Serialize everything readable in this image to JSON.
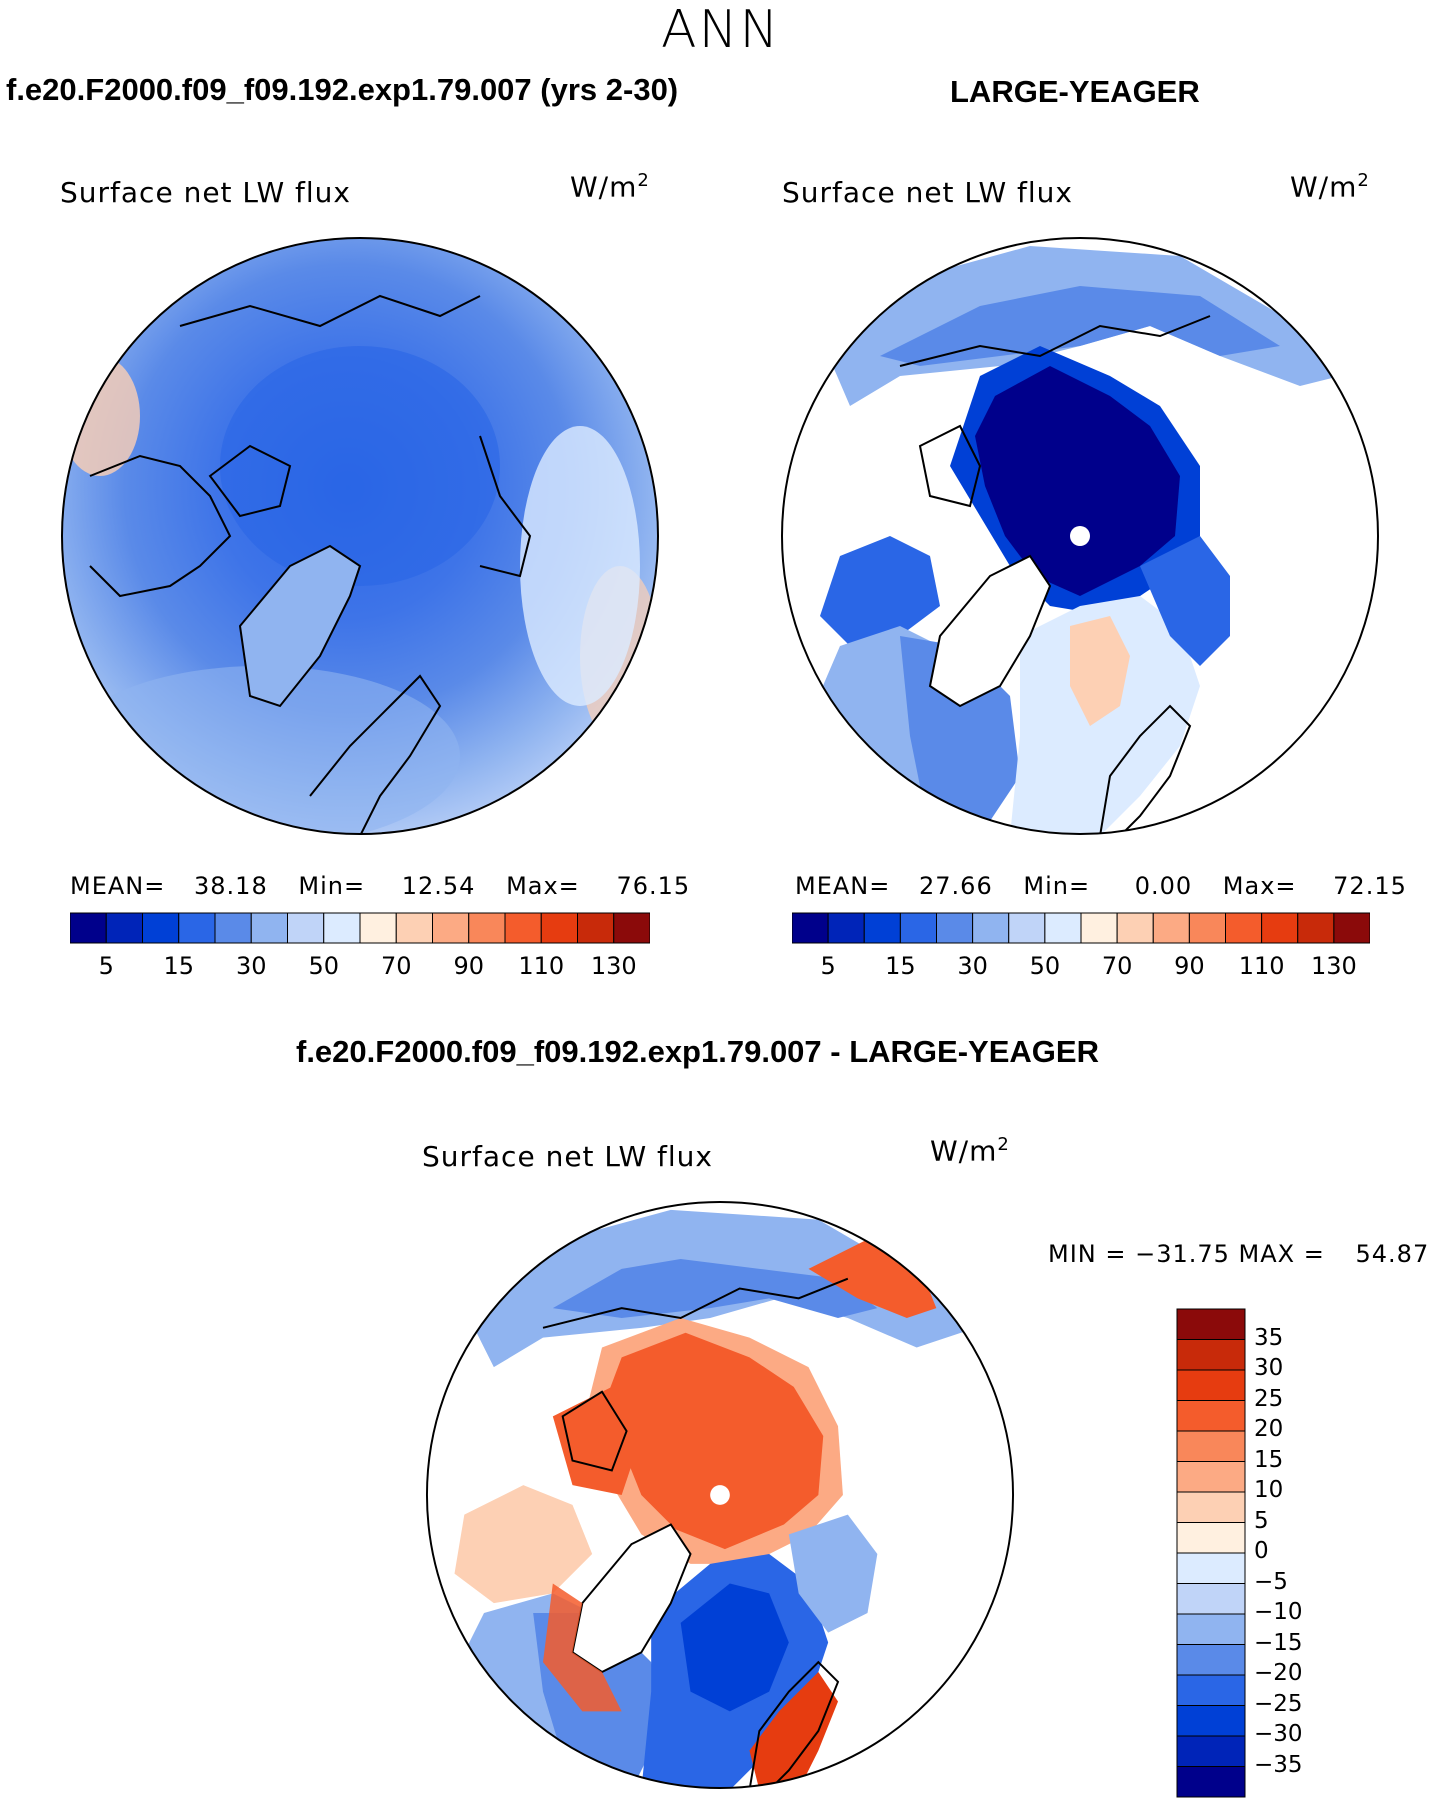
{
  "page": {
    "title": "ANN",
    "case_title": "f.e20.F2000.f09_f09.192.exp1.79.007 (yrs 2-30)",
    "obs_title": "LARGE-YEAGER",
    "diff_title": "f.e20.F2000.f09_f09.192.exp1.79.007 - LARGE-YEAGER"
  },
  "colors": {
    "blues": [
      "#00008b",
      "#0024b8",
      "#0040d6",
      "#2a66e6",
      "#5a8ae8",
      "#90b4f0",
      "#c0d4f8",
      "#dcebff"
    ],
    "reds": [
      "#fff0e0",
      "#fdd0b4",
      "#fcaa84",
      "#f9875a",
      "#f45c2c",
      "#e63c10",
      "#c82a0a",
      "#8b0a0a"
    ],
    "land": "#ffffff",
    "coast": "#000000"
  },
  "chart_data": [
    {
      "type": "heatmap",
      "panel": "model",
      "title": "Surface net LW flux",
      "units": "W/m",
      "units_exp": "2",
      "mean_label": "MEAN=",
      "mean": "38.18",
      "min_label": "Min=",
      "min": "12.54",
      "max_label": "Max=",
      "max": "76.15",
      "colorbar_ticks": [
        "5",
        "15",
        "30",
        "50",
        "70",
        "90",
        "110",
        "130"
      ],
      "colorbar_levels": 16
    },
    {
      "type": "heatmap",
      "panel": "obs",
      "title": "Surface net LW flux",
      "units": "W/m",
      "units_exp": "2",
      "mean_label": "MEAN=",
      "mean": "27.66",
      "min_label": "Min=",
      "min": "0.00",
      "max_label": "Max=",
      "max": "72.15",
      "colorbar_ticks": [
        "5",
        "15",
        "30",
        "50",
        "70",
        "90",
        "110",
        "130"
      ],
      "colorbar_levels": 16
    },
    {
      "type": "heatmap",
      "panel": "difference",
      "title": "Surface net LW flux",
      "units": "W/m",
      "units_exp": "2",
      "minmax_text": "MIN = −31.75 MAX =",
      "max_value": "54.87",
      "colorbar_ticks": [
        "35",
        "30",
        "25",
        "20",
        "15",
        "10",
        "5",
        "0",
        "−5",
        "−10",
        "−15",
        "−20",
        "−25",
        "−30",
        "−35"
      ],
      "colorbar_levels": 16
    }
  ]
}
